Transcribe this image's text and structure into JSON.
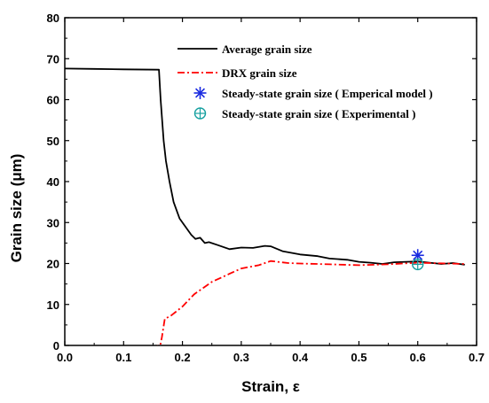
{
  "chart_data": {
    "type": "line",
    "xlabel": "Strain, ε",
    "ylabel": "Grain size (μm)",
    "xlim": [
      0,
      0.7
    ],
    "ylim": [
      0,
      80
    ],
    "xticks": [
      "0.0",
      "0.1",
      "0.2",
      "0.3",
      "0.4",
      "0.5",
      "0.6",
      "0.7"
    ],
    "yticks": [
      "0",
      "10",
      "20",
      "30",
      "40",
      "50",
      "60",
      "70",
      "80"
    ],
    "grid": false,
    "legend_position": "top-right",
    "series": [
      {
        "name": "Average grain size",
        "style": "solid",
        "color": "#000000",
        "points": [
          [
            0.0,
            67.6
          ],
          [
            0.05,
            67.5
          ],
          [
            0.1,
            67.4
          ],
          [
            0.16,
            67.3
          ],
          [
            0.163,
            60
          ],
          [
            0.168,
            50
          ],
          [
            0.172,
            45
          ],
          [
            0.178,
            40
          ],
          [
            0.185,
            35
          ],
          [
            0.195,
            31
          ],
          [
            0.205,
            29
          ],
          [
            0.215,
            27
          ],
          [
            0.222,
            26
          ],
          [
            0.23,
            26.3
          ],
          [
            0.238,
            25
          ],
          [
            0.245,
            25.2
          ],
          [
            0.26,
            24.5
          ],
          [
            0.28,
            23.5
          ],
          [
            0.3,
            23.9
          ],
          [
            0.32,
            23.8
          ],
          [
            0.34,
            24.3
          ],
          [
            0.35,
            24.2
          ],
          [
            0.37,
            23
          ],
          [
            0.4,
            22.2
          ],
          [
            0.43,
            21.8
          ],
          [
            0.45,
            21.2
          ],
          [
            0.48,
            20.9
          ],
          [
            0.5,
            20.4
          ],
          [
            0.52,
            20.2
          ],
          [
            0.54,
            19.9
          ],
          [
            0.56,
            20.3
          ],
          [
            0.58,
            20.4
          ],
          [
            0.6,
            20.5
          ],
          [
            0.62,
            20.2
          ],
          [
            0.64,
            19.9
          ],
          [
            0.66,
            20.1
          ],
          [
            0.68,
            19.7
          ]
        ]
      },
      {
        "name": "DRX grain size",
        "style": "dashdot",
        "color": "#ff0000",
        "points": [
          [
            0.157,
            0
          ],
          [
            0.161,
            -1
          ],
          [
            0.165,
            2
          ],
          [
            0.17,
            6.5
          ],
          [
            0.18,
            7.2
          ],
          [
            0.2,
            9.5
          ],
          [
            0.22,
            12.5
          ],
          [
            0.25,
            15.5
          ],
          [
            0.28,
            17.5
          ],
          [
            0.3,
            18.8
          ],
          [
            0.33,
            19.6
          ],
          [
            0.35,
            20.6
          ],
          [
            0.38,
            20.1
          ],
          [
            0.4,
            20
          ],
          [
            0.45,
            19.8
          ],
          [
            0.5,
            19.6
          ],
          [
            0.55,
            19.8
          ],
          [
            0.6,
            20.2
          ],
          [
            0.65,
            20
          ],
          [
            0.68,
            19.9
          ]
        ]
      }
    ],
    "markers": [
      {
        "name": "Steady-state grain size ( Emperical model )",
        "symbol": "asterisk",
        "color": "#1a2be0",
        "x": 0.6,
        "y": 22
      },
      {
        "name": "Steady-state grain size ( Experimental )",
        "symbol": "circle-plus",
        "color": "#16a0a0",
        "x": 0.6,
        "y": 19.8
      }
    ]
  }
}
